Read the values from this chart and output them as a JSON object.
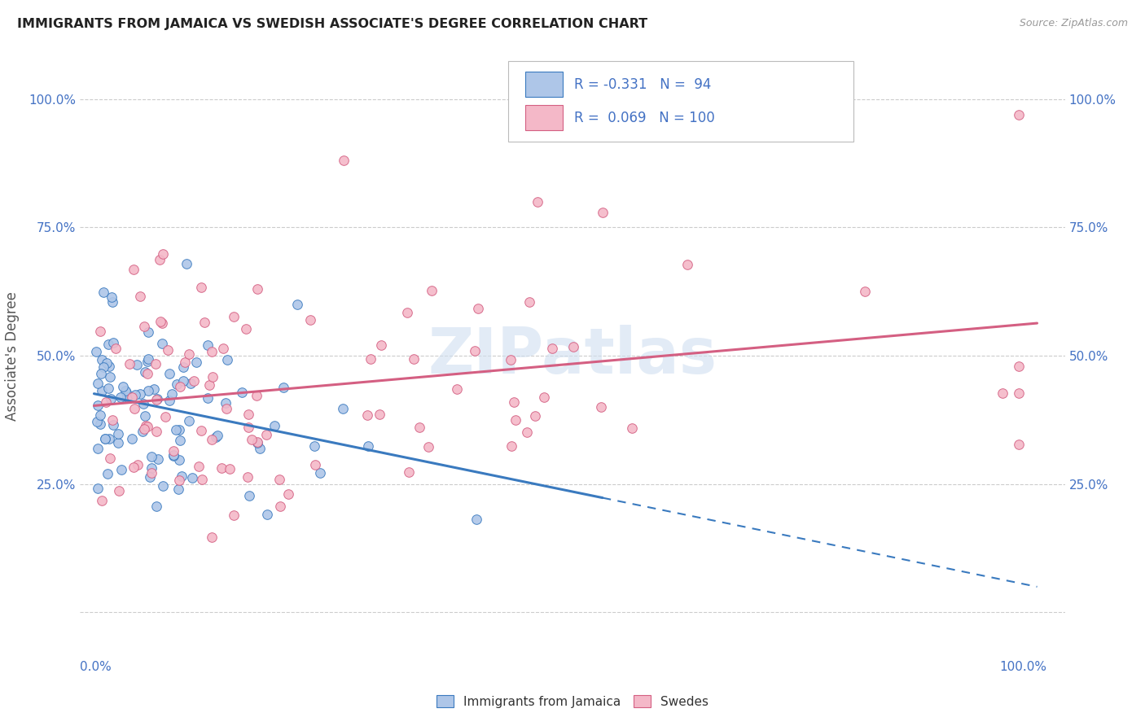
{
  "title": "IMMIGRANTS FROM JAMAICA VS SWEDISH ASSOCIATE'S DEGREE CORRELATION CHART",
  "source": "Source: ZipAtlas.com",
  "ylabel": "Associate's Degree",
  "watermark": "ZIPatlas",
  "legend": {
    "jamaica": {
      "R": -0.331,
      "N": 94,
      "color": "#aec6e8",
      "line_color": "#3a7abf"
    },
    "swedes": {
      "R": 0.069,
      "N": 100,
      "color": "#f4b8c8",
      "line_color": "#d45f82"
    }
  },
  "background_color": "#ffffff",
  "grid_color": "#cccccc",
  "title_color": "#222222",
  "axis_tick_color": "#4472c4",
  "ylabel_color": "#555555",
  "watermark_color": "#d0dff0",
  "seed_jamaica": 101,
  "seed_swedes": 202
}
